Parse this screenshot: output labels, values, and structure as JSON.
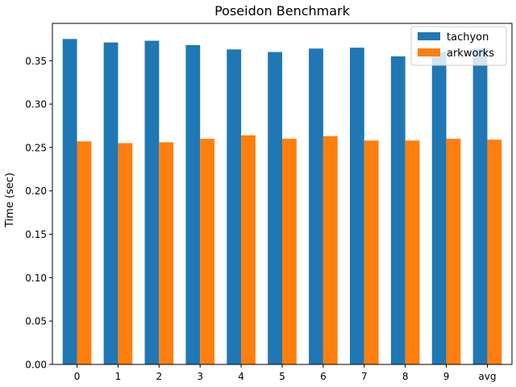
{
  "chart_data": {
    "type": "bar",
    "title": "Poseidon Benchmark",
    "xlabel": "",
    "ylabel": "Time (sec)",
    "categories": [
      "0",
      "1",
      "2",
      "3",
      "4",
      "5",
      "6",
      "7",
      "8",
      "9",
      "avg"
    ],
    "series": [
      {
        "name": "tachyon",
        "color": "#1f77b4",
        "values": [
          0.375,
          0.371,
          0.373,
          0.368,
          0.363,
          0.36,
          0.364,
          0.365,
          0.355,
          0.36,
          0.364
        ]
      },
      {
        "name": "arkworks",
        "color": "#ff7f0e",
        "values": [
          0.257,
          0.255,
          0.256,
          0.26,
          0.264,
          0.26,
          0.263,
          0.258,
          0.258,
          0.26,
          0.259
        ]
      }
    ],
    "ylim": [
      0,
      0.393
    ],
    "yticks": [
      "0.00",
      "0.05",
      "0.10",
      "0.15",
      "0.20",
      "0.25",
      "0.30",
      "0.35"
    ],
    "grid": false,
    "legend_position": "top-right"
  }
}
